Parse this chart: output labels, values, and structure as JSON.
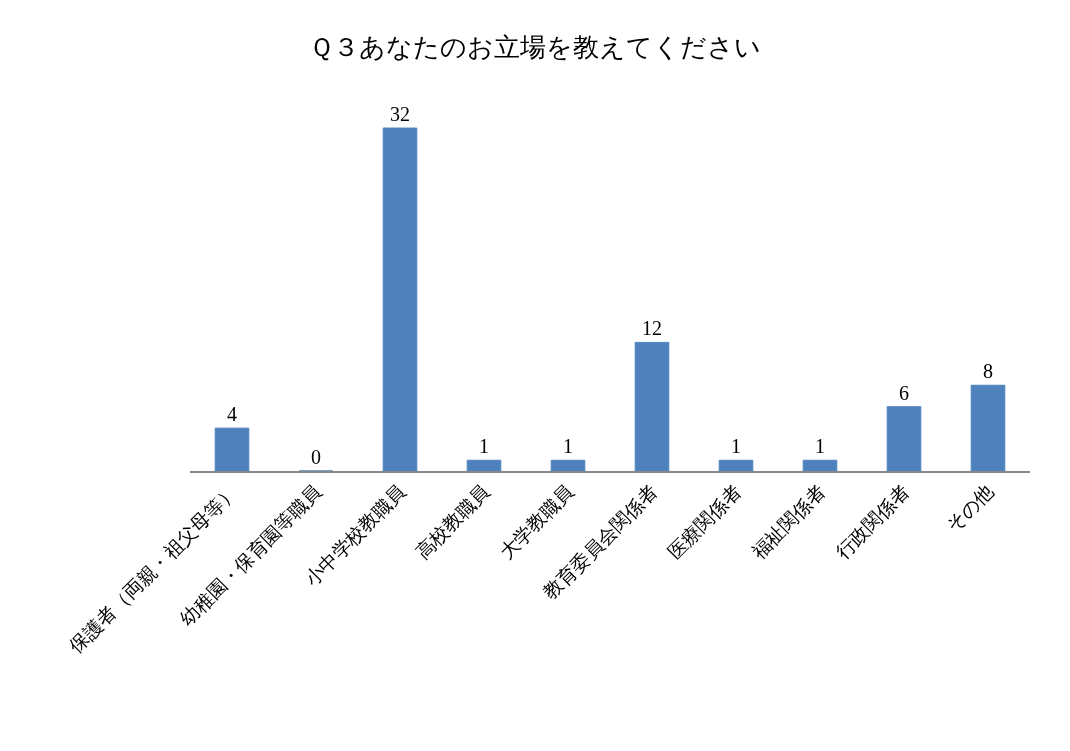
{
  "chart_data": {
    "type": "bar",
    "title": "Ｑ３あなたのお立場を教えてください",
    "categories": [
      "保護者（両親・祖父母等）",
      "幼稚園・保育園等職員",
      "小中学校教職員",
      "高校教職員",
      "大学教職員",
      "教育委員会関係者",
      "医療関係者",
      "福祉関係者",
      "行政関係者",
      "その他"
    ],
    "values": [
      4,
      0,
      32,
      1,
      1,
      12,
      1,
      1,
      6,
      8
    ],
    "color": "#4f81bd",
    "data_labels": true
  }
}
